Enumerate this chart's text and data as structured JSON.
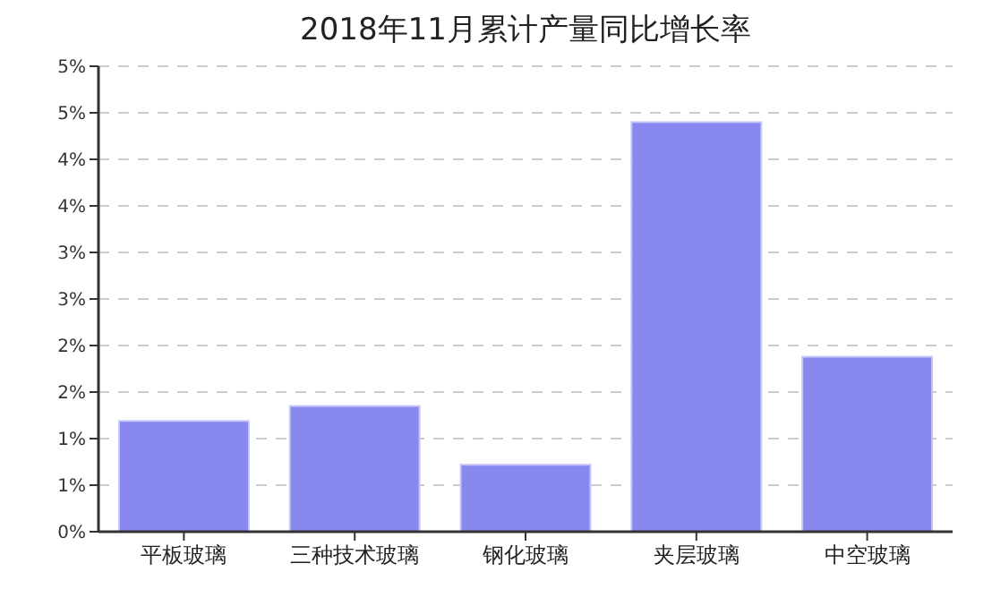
{
  "chart_data": {
    "type": "bar",
    "title": "2018年11月累计产量同比增长率",
    "categories": [
      "平板玻璃",
      "三种技术玻璃",
      "钢化玻璃",
      "夹层玻璃",
      "中空玻璃"
    ],
    "values": [
      1.19,
      1.35,
      0.72,
      4.4,
      1.88
    ],
    "color": "#8888ee",
    "ylim": [
      0,
      5
    ],
    "yticks": [
      {
        "value": 0,
        "label": "0%"
      },
      {
        "value": 0.5,
        "label": "1%"
      },
      {
        "value": 1,
        "label": "1%"
      },
      {
        "value": 1.5,
        "label": "2%"
      },
      {
        "value": 2,
        "label": "2%"
      },
      {
        "value": 2.5,
        "label": "3%"
      },
      {
        "value": 3,
        "label": "3%"
      },
      {
        "value": 3.5,
        "label": "4%"
      },
      {
        "value": 4,
        "label": "4%"
      },
      {
        "value": 4.5,
        "label": "5%"
      },
      {
        "value": 5,
        "label": "5%"
      }
    ],
    "grid": "y"
  }
}
